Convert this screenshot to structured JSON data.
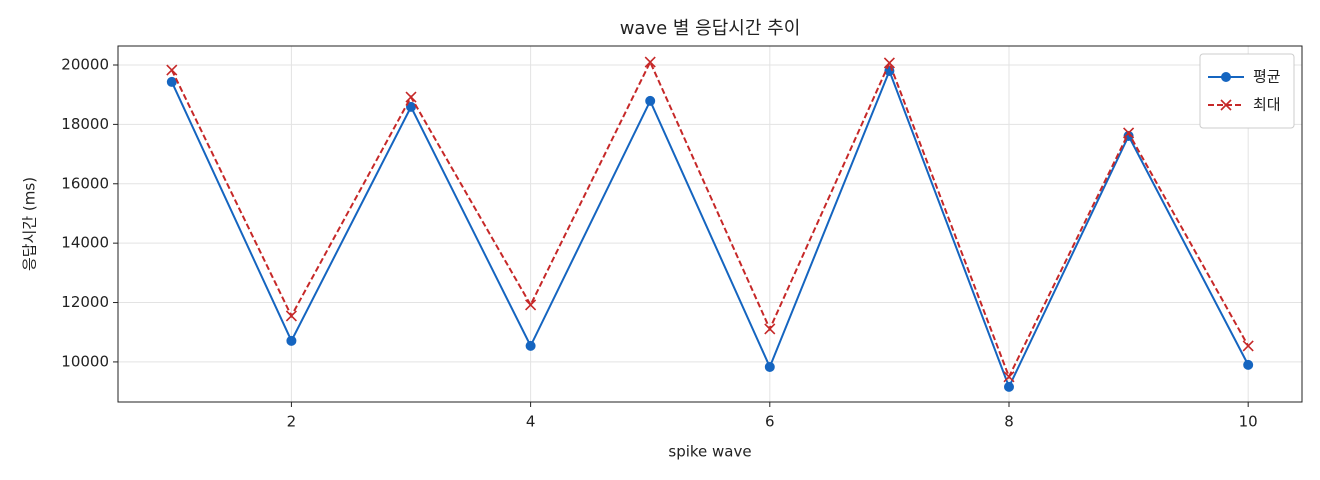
{
  "chart_data": {
    "type": "line",
    "title": "wave 별 응답시간 추이",
    "x_label": "spike wave",
    "y_label": "응답시간 (ms)",
    "x": [
      1,
      2,
      3,
      4,
      5,
      6,
      7,
      8,
      9,
      10
    ],
    "series": [
      {
        "name": "평균",
        "color": "#1565c0",
        "marker": "circle",
        "dash": "solid",
        "values": [
          19430,
          10710,
          18590,
          10540,
          18790,
          9830,
          19800,
          9160,
          17610,
          9900
        ]
      },
      {
        "name": "최대",
        "color": "#c62828",
        "marker": "x",
        "dash": "dashed",
        "values": [
          19830,
          11550,
          18920,
          11920,
          20100,
          11110,
          20070,
          9500,
          17710,
          10540
        ]
      }
    ],
    "xlim": [
      0.55,
      10.45
    ],
    "xticks": [
      2,
      4,
      6,
      8,
      10
    ],
    "ylim": [
      8650,
      20640
    ],
    "yticks": [
      10000,
      12000,
      14000,
      16000,
      18000,
      20000
    ],
    "grid": true,
    "legend": "upper right"
  }
}
